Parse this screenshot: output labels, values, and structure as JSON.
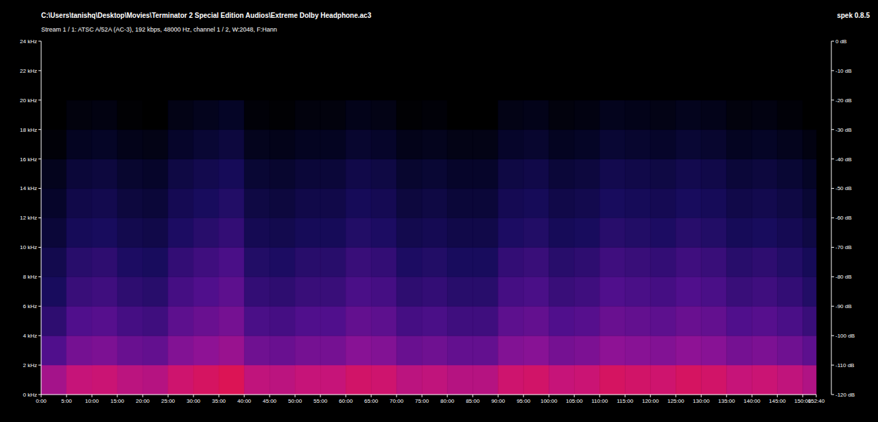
{
  "chart_data": {
    "type": "heatmap",
    "title": "C:\\Users\\tanishq\\Desktop\\Movies\\Terminator 2 Special Edition Audios\\Extreme Dolby Headphone.ac3",
    "subtitle": "Stream 1 / 1: ATSC A/52A (AC-3), 192 kbps, 48000 Hz, channel 1 / 2, W:2048, F:Hann",
    "annotations": [
      "spek 0.8.5"
    ],
    "x_bins": [
      0,
      5,
      10,
      15,
      20,
      25,
      30,
      35,
      40,
      45,
      50,
      55,
      60,
      65,
      70,
      75,
      80,
      85,
      90,
      95,
      100,
      105,
      110,
      115,
      120,
      125,
      130,
      135,
      140,
      145,
      150,
      152.667
    ],
    "y_bins": [
      0,
      2,
      4,
      6,
      8,
      10,
      12,
      14,
      16,
      18,
      20,
      22,
      24
    ],
    "cells": [
      [
        -76,
        -70,
        -69,
        -72,
        -73,
        -68,
        -66,
        -64,
        -71,
        -72,
        -70,
        -70,
        -67,
        -68,
        -72,
        -71,
        -73,
        -73,
        -68,
        -67,
        -70,
        -69,
        -66,
        -67,
        -68,
        -66,
        -67,
        -70,
        -69,
        -71,
        -74
      ],
      [
        -90,
        -84,
        -83,
        -86,
        -87,
        -82,
        -80,
        -78,
        -85,
        -86,
        -84,
        -84,
        -81,
        -82,
        -86,
        -85,
        -87,
        -87,
        -82,
        -81,
        -84,
        -83,
        -80,
        -81,
        -82,
        -80,
        -81,
        -84,
        -83,
        -85,
        -88
      ],
      [
        -96,
        -90,
        -89,
        -92,
        -93,
        -88,
        -86,
        -84,
        -91,
        -92,
        -90,
        -90,
        -87,
        -88,
        -92,
        -91,
        -93,
        -93,
        -88,
        -87,
        -90,
        -89,
        -86,
        -87,
        -88,
        -86,
        -87,
        -90,
        -89,
        -91,
        -94
      ],
      [
        -100,
        -94,
        -93,
        -96,
        -97,
        -92,
        -90,
        -88,
        -95,
        -96,
        -94,
        -94,
        -91,
        -92,
        -96,
        -95,
        -97,
        -97,
        -92,
        -91,
        -94,
        -93,
        -90,
        -91,
        -92,
        -90,
        -91,
        -94,
        -93,
        -95,
        -98
      ],
      [
        -103,
        -97,
        -96,
        -99,
        -100,
        -95,
        -93,
        -91,
        -98,
        -99,
        -97,
        -97,
        -94,
        -95,
        -99,
        -98,
        -100,
        -100,
        -95,
        -94,
        -97,
        -96,
        -93,
        -94,
        -95,
        -93,
        -94,
        -97,
        -96,
        -98,
        -101
      ],
      [
        -107,
        -101,
        -100,
        -103,
        -104,
        -99,
        -97,
        -95,
        -102,
        -103,
        -101,
        -101,
        -98,
        -99,
        -103,
        -102,
        -104,
        -104,
        -99,
        -98,
        -101,
        -100,
        -97,
        -98,
        -99,
        -97,
        -98,
        -101,
        -100,
        -102,
        -105
      ],
      [
        -110,
        -104,
        -103,
        -106,
        -107,
        -102,
        -100,
        -98,
        -105,
        -106,
        -104,
        -104,
        -101,
        -102,
        -106,
        -105,
        -107,
        -107,
        -102,
        -101,
        -104,
        -103,
        -100,
        -101,
        -102,
        -100,
        -101,
        -104,
        -103,
        -105,
        -108
      ],
      [
        -113,
        -107,
        -106,
        -109,
        -110,
        -105,
        -103,
        -101,
        -108,
        -109,
        -107,
        -107,
        -104,
        -105,
        -109,
        -108,
        -110,
        -110,
        -105,
        -104,
        -107,
        -106,
        -103,
        -104,
        -105,
        -103,
        -104,
        -107,
        -106,
        -108,
        -111
      ],
      [
        -118,
        -112,
        -111,
        -114,
        -115,
        -110,
        -108,
        -106,
        -113,
        -114,
        -112,
        -112,
        -109,
        -110,
        -114,
        -113,
        -115,
        -115,
        -110,
        -109,
        -112,
        -111,
        -108,
        -109,
        -110,
        -108,
        -109,
        -112,
        -111,
        -113,
        -116
      ],
      [
        -120,
        -117,
        -116,
        -119,
        -120,
        -115,
        -113,
        -111,
        -118,
        -119,
        -117,
        -117,
        -114,
        -115,
        -119,
        -118,
        -120,
        -120,
        -115,
        -114,
        -117,
        -116,
        -113,
        -114,
        -115,
        -113,
        -114,
        -117,
        -116,
        -118,
        -120
      ],
      [
        -120,
        -120,
        -120,
        -120,
        -120,
        -120,
        -120,
        -120,
        -120,
        -120,
        -120,
        -120,
        -120,
        -120,
        -120,
        -120,
        -120,
        -120,
        -120,
        -120,
        -120,
        -120,
        -120,
        -120,
        -120,
        -120,
        -120,
        -120,
        -120,
        -120,
        -120
      ],
      [
        -120,
        -120,
        -120,
        -120,
        -120,
        -120,
        -120,
        -120,
        -120,
        -120,
        -120,
        -120,
        -120,
        -120,
        -120,
        -120,
        -120,
        -120,
        -120,
        -120,
        -120,
        -120,
        -120,
        -120,
        -120,
        -120,
        -120,
        -120,
        -120,
        -120,
        -120
      ]
    ],
    "xlim": [
      0,
      152.667
    ],
    "xticks": [
      {
        "value": 0,
        "label": "0:00"
      },
      {
        "value": 5,
        "label": "5:00"
      },
      {
        "value": 10,
        "label": "10:00"
      },
      {
        "value": 15,
        "label": "15:00"
      },
      {
        "value": 20,
        "label": "20:00"
      },
      {
        "value": 25,
        "label": "25:00"
      },
      {
        "value": 30,
        "label": "30:00"
      },
      {
        "value": 35,
        "label": "35:00"
      },
      {
        "value": 40,
        "label": "40:00"
      },
      {
        "value": 45,
        "label": "45:00"
      },
      {
        "value": 50,
        "label": "50:00"
      },
      {
        "value": 55,
        "label": "55:00"
      },
      {
        "value": 60,
        "label": "60:00"
      },
      {
        "value": 65,
        "label": "65:00"
      },
      {
        "value": 70,
        "label": "70:00"
      },
      {
        "value": 75,
        "label": "75:00"
      },
      {
        "value": 80,
        "label": "80:00"
      },
      {
        "value": 85,
        "label": "85:00"
      },
      {
        "value": 90,
        "label": "90:00"
      },
      {
        "value": 95,
        "label": "95:00"
      },
      {
        "value": 100,
        "label": "100:00"
      },
      {
        "value": 105,
        "label": "105:00"
      },
      {
        "value": 110,
        "label": "110:00"
      },
      {
        "value": 115,
        "label": "115:00"
      },
      {
        "value": 120,
        "label": "120:00"
      },
      {
        "value": 125,
        "label": "125:00"
      },
      {
        "value": 130,
        "label": "130:00"
      },
      {
        "value": 135,
        "label": "135:00"
      },
      {
        "value": 140,
        "label": "140:00"
      },
      {
        "value": 145,
        "label": "145:00"
      },
      {
        "value": 150,
        "label": "150:00"
      },
      {
        "value": 152.667,
        "label": "152:40"
      }
    ],
    "ylim": [
      0,
      24
    ],
    "yticks": [
      {
        "value": 0,
        "label": "0 kHz"
      },
      {
        "value": 2,
        "label": "2 kHz"
      },
      {
        "value": 4,
        "label": "4 kHz"
      },
      {
        "value": 6,
        "label": "6 kHz"
      },
      {
        "value": 8,
        "label": "8 kHz"
      },
      {
        "value": 10,
        "label": "10 kHz"
      },
      {
        "value": 12,
        "label": "12 kHz"
      },
      {
        "value": 14,
        "label": "14 kHz"
      },
      {
        "value": 16,
        "label": "16 kHz"
      },
      {
        "value": 18,
        "label": "18 kHz"
      },
      {
        "value": 20,
        "label": "20 kHz"
      },
      {
        "value": 22,
        "label": "22 kHz"
      },
      {
        "value": 24,
        "label": "24 kHz"
      }
    ],
    "colorbar": {
      "range": [
        -120,
        0
      ],
      "ticks": [
        {
          "value": 0,
          "label": "0 dB"
        },
        {
          "value": -10,
          "label": "-10 dB"
        },
        {
          "value": -20,
          "label": "-20 dB"
        },
        {
          "value": -30,
          "label": "-30 dB"
        },
        {
          "value": -40,
          "label": "-40 dB"
        },
        {
          "value": -50,
          "label": "-50 dB"
        },
        {
          "value": -60,
          "label": "-60 dB"
        },
        {
          "value": -70,
          "label": "-70 dB"
        },
        {
          "value": -80,
          "label": "-80 dB"
        },
        {
          "value": -90,
          "label": "-90 dB"
        },
        {
          "value": -100,
          "label": "-100 dB"
        },
        {
          "value": -110,
          "label": "-110 dB"
        },
        {
          "value": -120,
          "label": "-120 dB"
        }
      ]
    }
  }
}
